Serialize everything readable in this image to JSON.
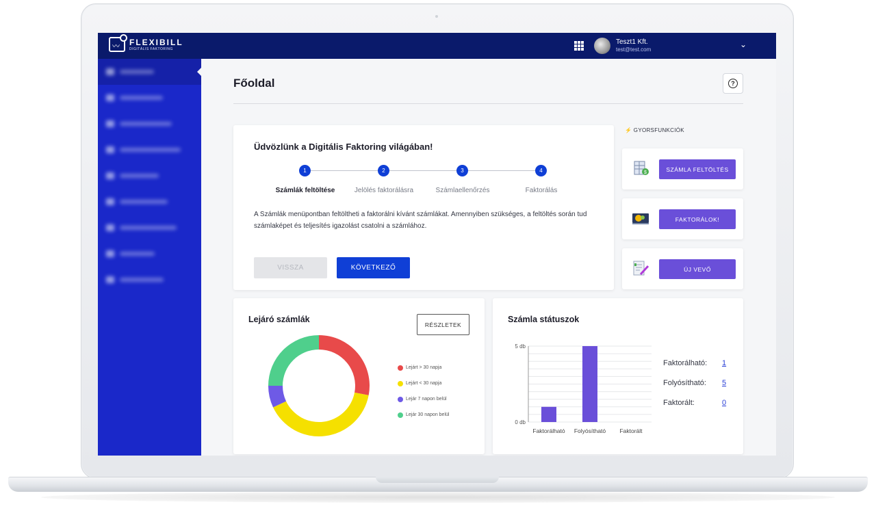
{
  "app": {
    "logo_name": "FLEXIBILL",
    "logo_sub": "DIGITÁLIS FAKTORING"
  },
  "user": {
    "name": "Teszt1 Kft.",
    "email": "test@test.com"
  },
  "sidebar": {
    "items": [
      "item-1",
      "item-2",
      "item-3",
      "item-4",
      "item-5",
      "item-6",
      "item-7",
      "item-8",
      "item-9"
    ]
  },
  "page": {
    "title": "Főoldal"
  },
  "welcome": {
    "title": "Üdvözlünk a Digitális Faktoring világában!",
    "steps": [
      {
        "number": "1",
        "label": "Számlák feltöltése"
      },
      {
        "number": "2",
        "label": "Jelölés faktorálásra"
      },
      {
        "number": "3",
        "label": "Számlaellenőrzés"
      },
      {
        "number": "4",
        "label": "Faktorálás"
      }
    ],
    "text": "A Számlák menüpontban feltöltheti a faktorálni kívánt számlákat. Amennyiben szükséges, a feltöltés során tud számlaképet és teljesítés igazolást csatolni a számlához.",
    "back_label": "VISSZA",
    "next_label": "KÖVETKEZŐ"
  },
  "quick_functions": {
    "label": "GYORSFUNKCIÓK",
    "items": [
      {
        "icon": "invoice-upload-icon",
        "label": "SZÁMLA FELTÖLTÉS"
      },
      {
        "icon": "factoring-icon",
        "label": "FAKTORÁLOK!"
      },
      {
        "icon": "new-customer-icon",
        "label": "ÚJ VEVŐ"
      }
    ]
  },
  "expiring": {
    "title": "Lejáró számlák",
    "details_label": "RÉSZLETEK",
    "legend": [
      {
        "label": "Lejárt > 30 napja",
        "color": "#e84a4a"
      },
      {
        "label": "Lejárt < 30 napja",
        "color": "#f5e000"
      },
      {
        "label": "Lejár 7 napon belül",
        "color": "#6e5ae6"
      },
      {
        "label": "Lejár 30 napon belül",
        "color": "#4fcf8c"
      }
    ]
  },
  "status": {
    "title": "Számla státuszok",
    "rows": [
      {
        "label": "Faktorálható:",
        "value": "1"
      },
      {
        "label": "Folyósítható:",
        "value": "5"
      },
      {
        "label": "Faktorált:",
        "value": "0"
      }
    ]
  },
  "chart_data": [
    {
      "type": "pie",
      "title": "Lejáró számlák",
      "categories": [
        "Lejárt > 30 napja",
        "Lejárt < 30 napja",
        "Lejár 7 napon belül",
        "Lejár 30 napon belül"
      ],
      "values": [
        28,
        40,
        7,
        25
      ],
      "colors": [
        "#e84a4a",
        "#f5e000",
        "#6e5ae6",
        "#4fcf8c"
      ]
    },
    {
      "type": "bar",
      "title": "Számla státuszok",
      "categories": [
        "Faktorálható",
        "Folyósítható",
        "Faktorált"
      ],
      "values": [
        1,
        5,
        0
      ],
      "ylim": [
        0,
        5
      ],
      "yticks": [
        "0 db",
        "5 db"
      ],
      "color": "#6a4fd9"
    }
  ]
}
